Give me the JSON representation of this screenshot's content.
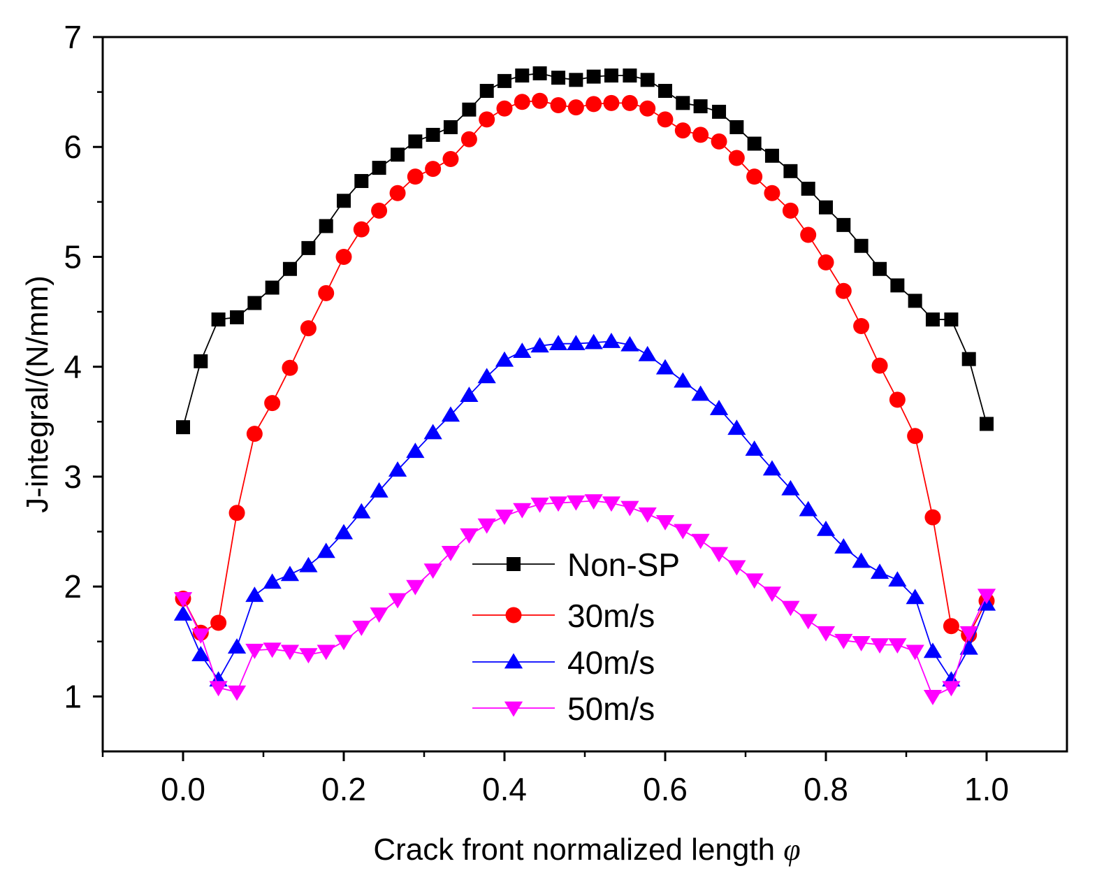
{
  "chart_data": {
    "type": "line",
    "xlabel": "Crack front normalized length",
    "xlabel_symbol": "φ",
    "ylabel": "J-integral/(N/mm)",
    "xlim": [
      -0.1,
      1.1
    ],
    "ylim": [
      0.5,
      7
    ],
    "x_ticks": [
      0.0,
      0.2,
      0.4,
      0.6,
      0.8,
      1.0
    ],
    "x_tick_labels": [
      "0.0",
      "0.2",
      "0.4",
      "0.6",
      "0.8",
      "1.0"
    ],
    "y_ticks": [
      1,
      2,
      3,
      4,
      5,
      6,
      7
    ],
    "y_tick_labels": [
      "1",
      "2",
      "3",
      "4",
      "5",
      "6",
      "7"
    ],
    "grid": false,
    "legend_position": "center-bottom",
    "series": [
      {
        "name": "Non-SP",
        "color": "#000000",
        "marker": "square",
        "points": [
          [
            0.0,
            3.45
          ],
          [
            0.022,
            4.05
          ],
          [
            0.044,
            4.43
          ],
          [
            0.067,
            4.45
          ],
          [
            0.089,
            4.58
          ],
          [
            0.111,
            4.72
          ],
          [
            0.133,
            4.89
          ],
          [
            0.156,
            5.08
          ],
          [
            0.178,
            5.28
          ],
          [
            0.2,
            5.51
          ],
          [
            0.222,
            5.69
          ],
          [
            0.244,
            5.81
          ],
          [
            0.267,
            5.93
          ],
          [
            0.289,
            6.05
          ],
          [
            0.311,
            6.11
          ],
          [
            0.333,
            6.18
          ],
          [
            0.356,
            6.34
          ],
          [
            0.378,
            6.51
          ],
          [
            0.4,
            6.6
          ],
          [
            0.422,
            6.65
          ],
          [
            0.444,
            6.67
          ],
          [
            0.467,
            6.63
          ],
          [
            0.489,
            6.61
          ],
          [
            0.511,
            6.64
          ],
          [
            0.533,
            6.65
          ],
          [
            0.556,
            6.65
          ],
          [
            0.578,
            6.61
          ],
          [
            0.6,
            6.51
          ],
          [
            0.622,
            6.4
          ],
          [
            0.644,
            6.37
          ],
          [
            0.667,
            6.32
          ],
          [
            0.689,
            6.18
          ],
          [
            0.711,
            6.03
          ],
          [
            0.733,
            5.92
          ],
          [
            0.756,
            5.78
          ],
          [
            0.778,
            5.62
          ],
          [
            0.8,
            5.45
          ],
          [
            0.822,
            5.29
          ],
          [
            0.844,
            5.1
          ],
          [
            0.867,
            4.89
          ],
          [
            0.889,
            4.74
          ],
          [
            0.911,
            4.6
          ],
          [
            0.933,
            4.43
          ],
          [
            0.956,
            4.43
          ],
          [
            0.978,
            4.07
          ],
          [
            1.0,
            3.48
          ]
        ]
      },
      {
        "name": "30m/s",
        "color": "#ff0000",
        "marker": "circle",
        "points": [
          [
            0.0,
            1.89
          ],
          [
            0.022,
            1.58
          ],
          [
            0.044,
            1.67
          ],
          [
            0.067,
            2.67
          ],
          [
            0.089,
            3.39
          ],
          [
            0.111,
            3.67
          ],
          [
            0.133,
            3.99
          ],
          [
            0.156,
            4.35
          ],
          [
            0.178,
            4.67
          ],
          [
            0.2,
            5.0
          ],
          [
            0.222,
            5.25
          ],
          [
            0.244,
            5.42
          ],
          [
            0.267,
            5.58
          ],
          [
            0.289,
            5.73
          ],
          [
            0.311,
            5.8
          ],
          [
            0.333,
            5.89
          ],
          [
            0.356,
            6.07
          ],
          [
            0.378,
            6.25
          ],
          [
            0.4,
            6.35
          ],
          [
            0.422,
            6.41
          ],
          [
            0.444,
            6.42
          ],
          [
            0.467,
            6.38
          ],
          [
            0.489,
            6.36
          ],
          [
            0.511,
            6.39
          ],
          [
            0.533,
            6.4
          ],
          [
            0.556,
            6.4
          ],
          [
            0.578,
            6.35
          ],
          [
            0.6,
            6.25
          ],
          [
            0.622,
            6.15
          ],
          [
            0.644,
            6.11
          ],
          [
            0.667,
            6.05
          ],
          [
            0.689,
            5.9
          ],
          [
            0.711,
            5.73
          ],
          [
            0.733,
            5.58
          ],
          [
            0.756,
            5.42
          ],
          [
            0.778,
            5.2
          ],
          [
            0.8,
            4.95
          ],
          [
            0.822,
            4.69
          ],
          [
            0.844,
            4.37
          ],
          [
            0.867,
            4.01
          ],
          [
            0.889,
            3.7
          ],
          [
            0.911,
            3.37
          ],
          [
            0.933,
            2.63
          ],
          [
            0.956,
            1.64
          ],
          [
            0.978,
            1.56
          ],
          [
            1.0,
            1.87
          ]
        ]
      },
      {
        "name": "40m/s",
        "color": "#0000ff",
        "marker": "triangle-up",
        "points": [
          [
            0.0,
            1.75
          ],
          [
            0.022,
            1.38
          ],
          [
            0.044,
            1.15
          ],
          [
            0.067,
            1.45
          ],
          [
            0.089,
            1.92
          ],
          [
            0.111,
            2.04
          ],
          [
            0.133,
            2.11
          ],
          [
            0.156,
            2.19
          ],
          [
            0.178,
            2.32
          ],
          [
            0.2,
            2.49
          ],
          [
            0.222,
            2.68
          ],
          [
            0.244,
            2.87
          ],
          [
            0.267,
            3.06
          ],
          [
            0.289,
            3.23
          ],
          [
            0.311,
            3.4
          ],
          [
            0.333,
            3.56
          ],
          [
            0.356,
            3.74
          ],
          [
            0.378,
            3.91
          ],
          [
            0.4,
            4.06
          ],
          [
            0.422,
            4.14
          ],
          [
            0.444,
            4.19
          ],
          [
            0.467,
            4.21
          ],
          [
            0.489,
            4.21
          ],
          [
            0.511,
            4.22
          ],
          [
            0.533,
            4.23
          ],
          [
            0.556,
            4.2
          ],
          [
            0.578,
            4.11
          ],
          [
            0.6,
            3.99
          ],
          [
            0.622,
            3.87
          ],
          [
            0.644,
            3.75
          ],
          [
            0.667,
            3.62
          ],
          [
            0.689,
            3.44
          ],
          [
            0.711,
            3.25
          ],
          [
            0.733,
            3.07
          ],
          [
            0.756,
            2.89
          ],
          [
            0.778,
            2.7
          ],
          [
            0.8,
            2.52
          ],
          [
            0.822,
            2.36
          ],
          [
            0.844,
            2.23
          ],
          [
            0.867,
            2.13
          ],
          [
            0.889,
            2.06
          ],
          [
            0.911,
            1.9
          ],
          [
            0.933,
            1.41
          ],
          [
            0.956,
            1.15
          ],
          [
            0.978,
            1.44
          ],
          [
            1.0,
            1.84
          ]
        ]
      },
      {
        "name": "50m/s",
        "color": "#ff00ff",
        "marker": "triangle-down",
        "points": [
          [
            0.0,
            1.89
          ],
          [
            0.022,
            1.56
          ],
          [
            0.044,
            1.08
          ],
          [
            0.067,
            1.04
          ],
          [
            0.089,
            1.42
          ],
          [
            0.111,
            1.43
          ],
          [
            0.133,
            1.41
          ],
          [
            0.156,
            1.38
          ],
          [
            0.178,
            1.41
          ],
          [
            0.2,
            1.5
          ],
          [
            0.222,
            1.63
          ],
          [
            0.244,
            1.75
          ],
          [
            0.267,
            1.88
          ],
          [
            0.289,
            2.0
          ],
          [
            0.311,
            2.15
          ],
          [
            0.333,
            2.31
          ],
          [
            0.356,
            2.47
          ],
          [
            0.378,
            2.56
          ],
          [
            0.4,
            2.64
          ],
          [
            0.422,
            2.7
          ],
          [
            0.444,
            2.75
          ],
          [
            0.467,
            2.76
          ],
          [
            0.489,
            2.77
          ],
          [
            0.511,
            2.78
          ],
          [
            0.533,
            2.76
          ],
          [
            0.556,
            2.72
          ],
          [
            0.578,
            2.66
          ],
          [
            0.6,
            2.59
          ],
          [
            0.622,
            2.51
          ],
          [
            0.644,
            2.42
          ],
          [
            0.667,
            2.3
          ],
          [
            0.689,
            2.18
          ],
          [
            0.711,
            2.06
          ],
          [
            0.733,
            1.94
          ],
          [
            0.756,
            1.81
          ],
          [
            0.778,
            1.69
          ],
          [
            0.8,
            1.58
          ],
          [
            0.822,
            1.51
          ],
          [
            0.844,
            1.49
          ],
          [
            0.867,
            1.47
          ],
          [
            0.889,
            1.47
          ],
          [
            0.911,
            1.41
          ],
          [
            0.933,
            1.0
          ],
          [
            0.956,
            1.08
          ],
          [
            0.978,
            1.58
          ],
          [
            1.0,
            1.92
          ]
        ]
      }
    ]
  }
}
